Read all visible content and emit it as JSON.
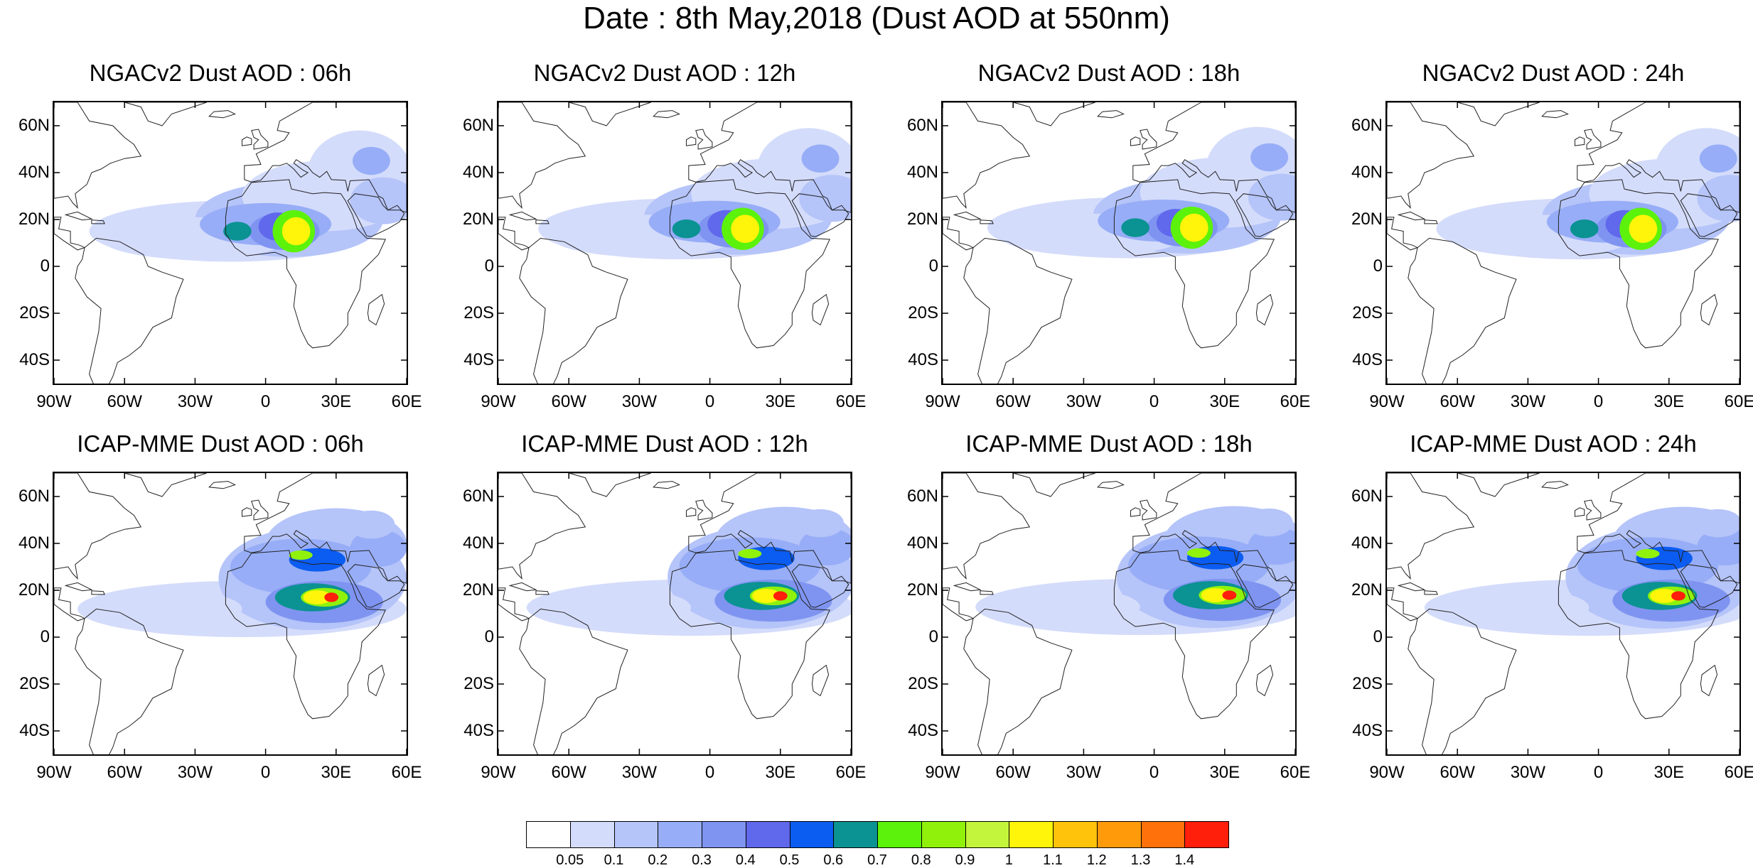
{
  "title": "Date : 8th May,2018 (Dust AOD at 550nm)",
  "panels": [
    {
      "title": "NGACv2 Dust AOD : 06h"
    },
    {
      "title": "NGACv2 Dust AOD : 12h"
    },
    {
      "title": "NGACv2 Dust AOD : 18h"
    },
    {
      "title": "NGACv2 Dust AOD : 24h"
    },
    {
      "title": "ICAP-MME Dust AOD : 06h"
    },
    {
      "title": "ICAP-MME Dust AOD : 12h"
    },
    {
      "title": "ICAP-MME Dust AOD : 18h"
    },
    {
      "title": "ICAP-MME Dust AOD : 24h"
    }
  ],
  "lat_ticks": [
    "60N",
    "40N",
    "20N",
    "0",
    "20S",
    "40S"
  ],
  "lon_ticks": [
    "90W",
    "60W",
    "30W",
    "0",
    "30E",
    "60E"
  ],
  "colorbar": {
    "labels": [
      "0.05",
      "0.1",
      "0.2",
      "0.3",
      "0.4",
      "0.5",
      "0.6",
      "0.7",
      "0.8",
      "0.9",
      "1",
      "1.1",
      "1.2",
      "1.3",
      "1.4"
    ],
    "colors": [
      "#ffffff",
      "#d4dcfb",
      "#b5c4f9",
      "#97adf7",
      "#7f94f1",
      "#6068ec",
      "#0b5cf1",
      "#0b9292",
      "#5cf20b",
      "#90f20b",
      "#c3f53c",
      "#fff50b",
      "#ffc30b",
      "#ff9a0b",
      "#ff710b",
      "#ff1f0b"
    ]
  }
}
